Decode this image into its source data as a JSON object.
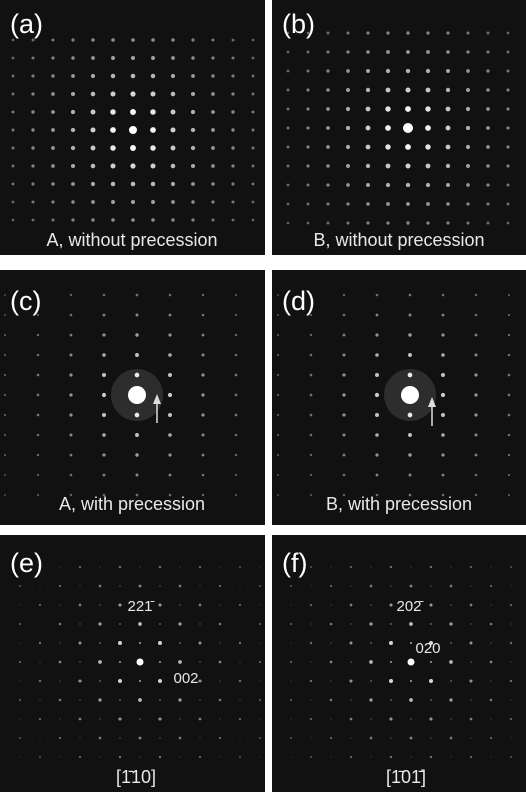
{
  "panels": [
    {
      "label": "(a)",
      "caption": "A, without precession"
    },
    {
      "label": "(b)",
      "caption": "B, without precession"
    },
    {
      "label": "(c)",
      "caption": "A, with precession"
    },
    {
      "label": "(d)",
      "caption": "B, with precession"
    },
    {
      "label": "(e)",
      "annotations": [
        "221̄",
        "002"
      ],
      "zone_axis": "[1̄10]"
    },
    {
      "label": "(f)",
      "annotations": [
        "202̄",
        "020"
      ],
      "zone_axis": "[1̄01̄]"
    }
  ]
}
